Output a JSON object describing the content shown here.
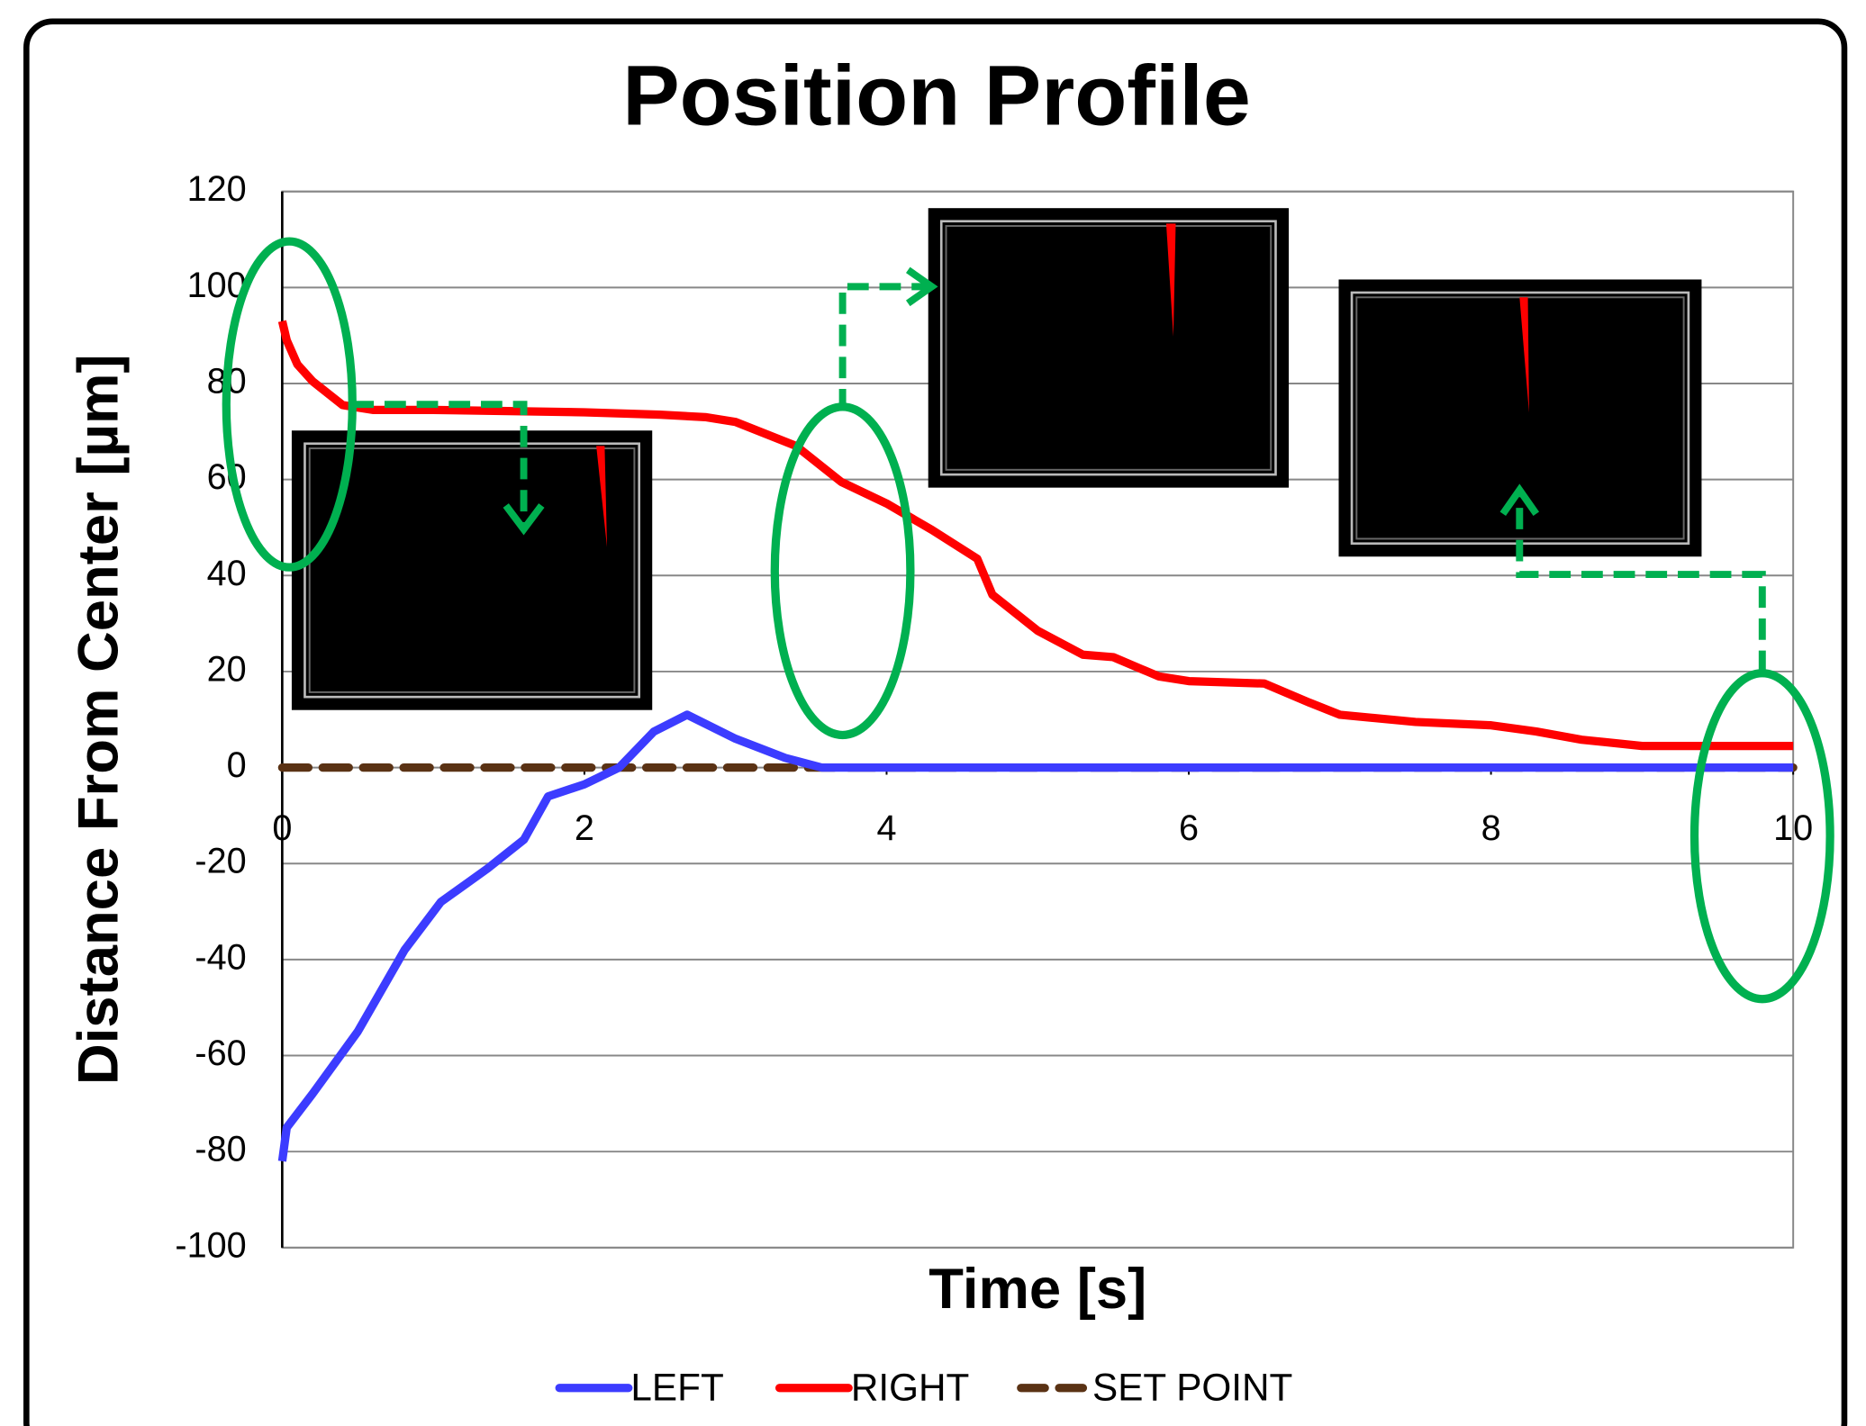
{
  "chart_data": {
    "type": "line",
    "title": "Position Profile",
    "x_label": "Time [s]",
    "y_label": "Distance From Center [µm]",
    "xlim": [
      0,
      10
    ],
    "xticks": [
      0,
      2,
      4,
      6,
      8,
      10
    ],
    "ylim": [
      -100,
      120
    ],
    "yticks": [
      -100,
      -80,
      -60,
      -40,
      -20,
      0,
      20,
      40,
      60,
      80,
      100,
      120
    ],
    "grid": true,
    "legend": "bottom",
    "series": [
      {
        "name": "LEFT",
        "color": "#3c3cff",
        "dash": false,
        "x": [
          0,
          0.03,
          0.2,
          0.5,
          0.81,
          1.05,
          1.36,
          1.6,
          1.76,
          2.0,
          2.23,
          2.46,
          2.68,
          3.0,
          3.33,
          3.57,
          4,
          6,
          8,
          10
        ],
        "values": [
          -82,
          -75,
          -68,
          -55,
          -38,
          -28,
          -21,
          -15,
          -6,
          -3.5,
          0,
          7.5,
          11,
          6,
          2,
          0,
          0,
          0,
          0,
          0
        ]
      },
      {
        "name": "RIGHT",
        "color": "#ff0000",
        "dash": false,
        "x": [
          0,
          0.03,
          0.1,
          0.2,
          0.4,
          0.6,
          1,
          2,
          2.5,
          2.8,
          3.0,
          3.4,
          3.7,
          4.0,
          4.3,
          4.6,
          4.7,
          5.0,
          5.3,
          5.5,
          5.8,
          6.0,
          6.5,
          6.8,
          7.0,
          7.5,
          8.0,
          8.3,
          8.6,
          9.0,
          10
        ],
        "values": [
          93,
          89,
          84,
          80.5,
          75.5,
          74.5,
          74.5,
          74,
          73.5,
          73,
          72,
          67,
          59.5,
          55,
          49.5,
          43.5,
          36,
          28.5,
          23.5,
          23,
          19,
          18,
          17.5,
          13.5,
          11,
          9.5,
          8.8,
          7.5,
          5.8,
          4.5,
          4.5
        ]
      },
      {
        "name": "SET POINT",
        "color": "#5a3214",
        "dash": true,
        "x": [
          0,
          10
        ],
        "values": [
          0,
          0
        ]
      }
    ]
  }
}
